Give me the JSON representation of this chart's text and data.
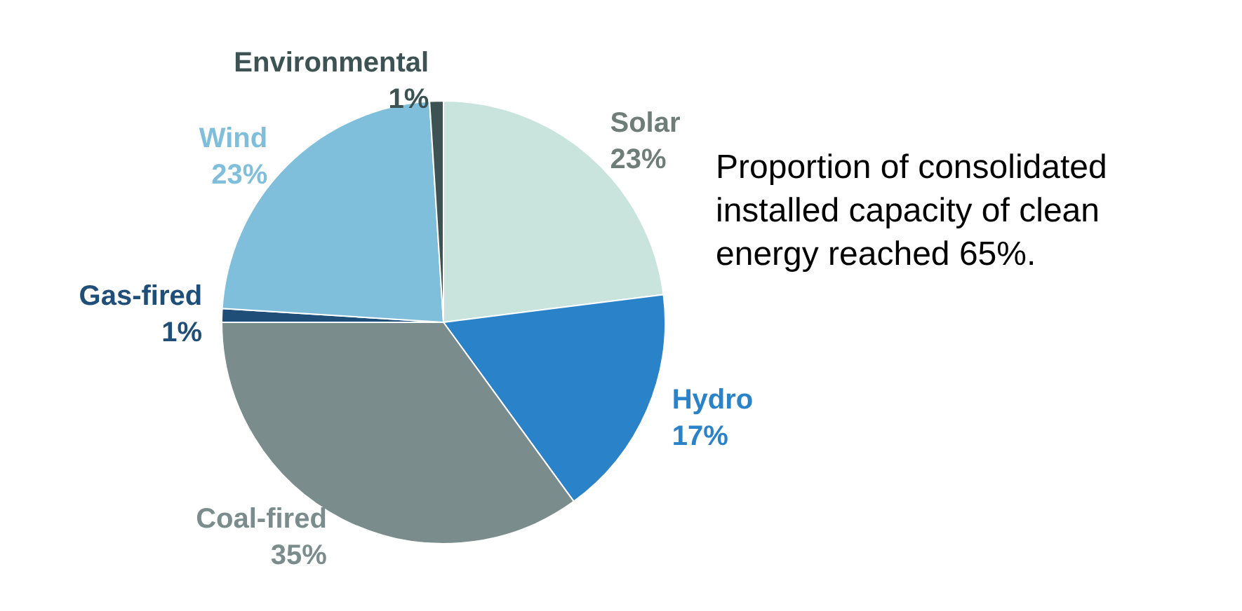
{
  "chart_data": {
    "type": "pie",
    "categories": [
      "Solar",
      "Hydro",
      "Coal-fired",
      "Gas-fired",
      "Wind",
      "Environmental"
    ],
    "values": [
      23,
      17,
      35,
      1,
      23,
      1
    ],
    "colors": [
      "#c9e4dc",
      "#2a82c8",
      "#7a8c8c",
      "#1f4e79",
      "#7fbfdc",
      "#3d5252"
    ],
    "annotations": [
      "Proportion of consolidated installed capacity of clean energy reached 65%."
    ],
    "value_labels": [
      "23%",
      "17%",
      "35%",
      "1%",
      "23%",
      "1%"
    ],
    "legend": false
  }
}
